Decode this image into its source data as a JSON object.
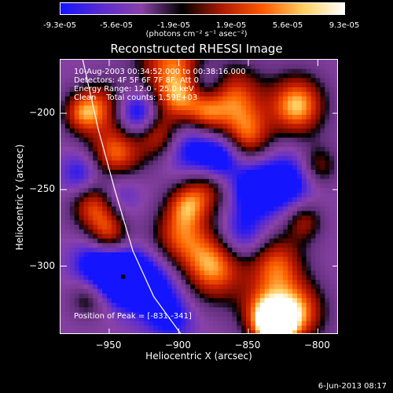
{
  "colorbar": {
    "ticks": [
      "-9.3e-05",
      "-5.6e-05",
      "-1.9e-05",
      "1.9e-05",
      "5.6e-05",
      "9.3e-05"
    ],
    "unit_label": "(photons cm⁻² s⁻¹ asec⁻²)",
    "colors": [
      "#1414ff",
      "#5a2bd0",
      "#8a42a8",
      "#000000",
      "#b01b00",
      "#ff5a00",
      "#ffd060",
      "#ffffff"
    ]
  },
  "info": {
    "line1": "10-Aug-2003 00:34:52.000 to 00:38:16.000",
    "line2": "Detectors: 4F 5F 6F 7F 8F, Att 0",
    "line3": "Energy Range: 12.0 - 25.0 keV",
    "line4": "Clean    Total counts: 1.59E+03",
    "peak": "Position of Peak = [-831,-341]"
  },
  "datestamp": "6-Jun-2013 08:17",
  "chart_data": {
    "type": "heatmap",
    "title": "Reconstructed RHESSI Image",
    "xlabel": "Heliocentric X (arcsec)",
    "ylabel": "Heliocentric Y (arcsec)",
    "xlim": [
      -985,
      -785
    ],
    "ylim": [
      -345,
      -165
    ],
    "xticks": [
      -950,
      -900,
      -850,
      -800
    ],
    "yticks": [
      -200,
      -250,
      -300
    ],
    "vmin": -9.3e-05,
    "vmax": 9.3e-05,
    "peak": [
      -831,
      -341
    ],
    "marker": [
      -940,
      -307
    ],
    "limb": [
      [
        -969,
        -165
      ],
      [
        -958,
        -210
      ],
      [
        -946,
        -250
      ],
      [
        -933,
        -290
      ],
      [
        -918,
        -320
      ],
      [
        -898,
        -345
      ]
    ],
    "sources": [
      [
        -905,
        -165,
        0.7,
        18
      ],
      [
        -900,
        -190,
        0.6,
        12
      ],
      [
        -955,
        -195,
        0.5,
        12
      ],
      [
        -945,
        -228,
        0.8,
        14
      ],
      [
        -915,
        -215,
        0.5,
        10
      ],
      [
        -880,
        -250,
        0.5,
        12
      ],
      [
        -875,
        -300,
        0.85,
        16
      ],
      [
        -860,
        -190,
        0.7,
        15
      ],
      [
        -850,
        -215,
        0.6,
        12
      ],
      [
        -880,
        -200,
        0.5,
        10
      ],
      [
        -960,
        -260,
        0.75,
        12
      ],
      [
        -950,
        -280,
        0.6,
        10
      ],
      [
        -900,
        -280,
        0.6,
        14
      ],
      [
        -895,
        -260,
        0.5,
        10
      ],
      [
        -815,
        -195,
        0.9,
        14
      ],
      [
        -810,
        -270,
        0.5,
        10
      ],
      [
        -830,
        -300,
        0.7,
        14
      ],
      [
        -815,
        -330,
        0.8,
        14
      ],
      [
        -831,
        -341,
        1.0,
        10
      ],
      [
        -840,
        -330,
        0.6,
        12
      ],
      [
        -970,
        -200,
        0.6,
        10
      ],
      [
        -965,
        -320,
        0.4,
        10
      ],
      [
        -800,
        -235,
        0.5,
        10
      ],
      [
        -930,
        -200,
        -0.6,
        10
      ],
      [
        -945,
        -250,
        -0.5,
        12
      ],
      [
        -940,
        -307,
        -0.95,
        12
      ],
      [
        -960,
        -300,
        -0.6,
        12
      ],
      [
        -920,
        -315,
        -0.6,
        14
      ],
      [
        -890,
        -225,
        -0.5,
        12
      ],
      [
        -870,
        -230,
        -0.6,
        10
      ],
      [
        -845,
        -250,
        -0.7,
        12
      ],
      [
        -820,
        -245,
        -0.6,
        14
      ],
      [
        -855,
        -280,
        -0.5,
        12
      ],
      [
        -905,
        -335,
        -0.4,
        12
      ],
      [
        -970,
        -240,
        -0.5,
        10
      ],
      [
        -880,
        -180,
        -0.4,
        10
      ]
    ]
  }
}
